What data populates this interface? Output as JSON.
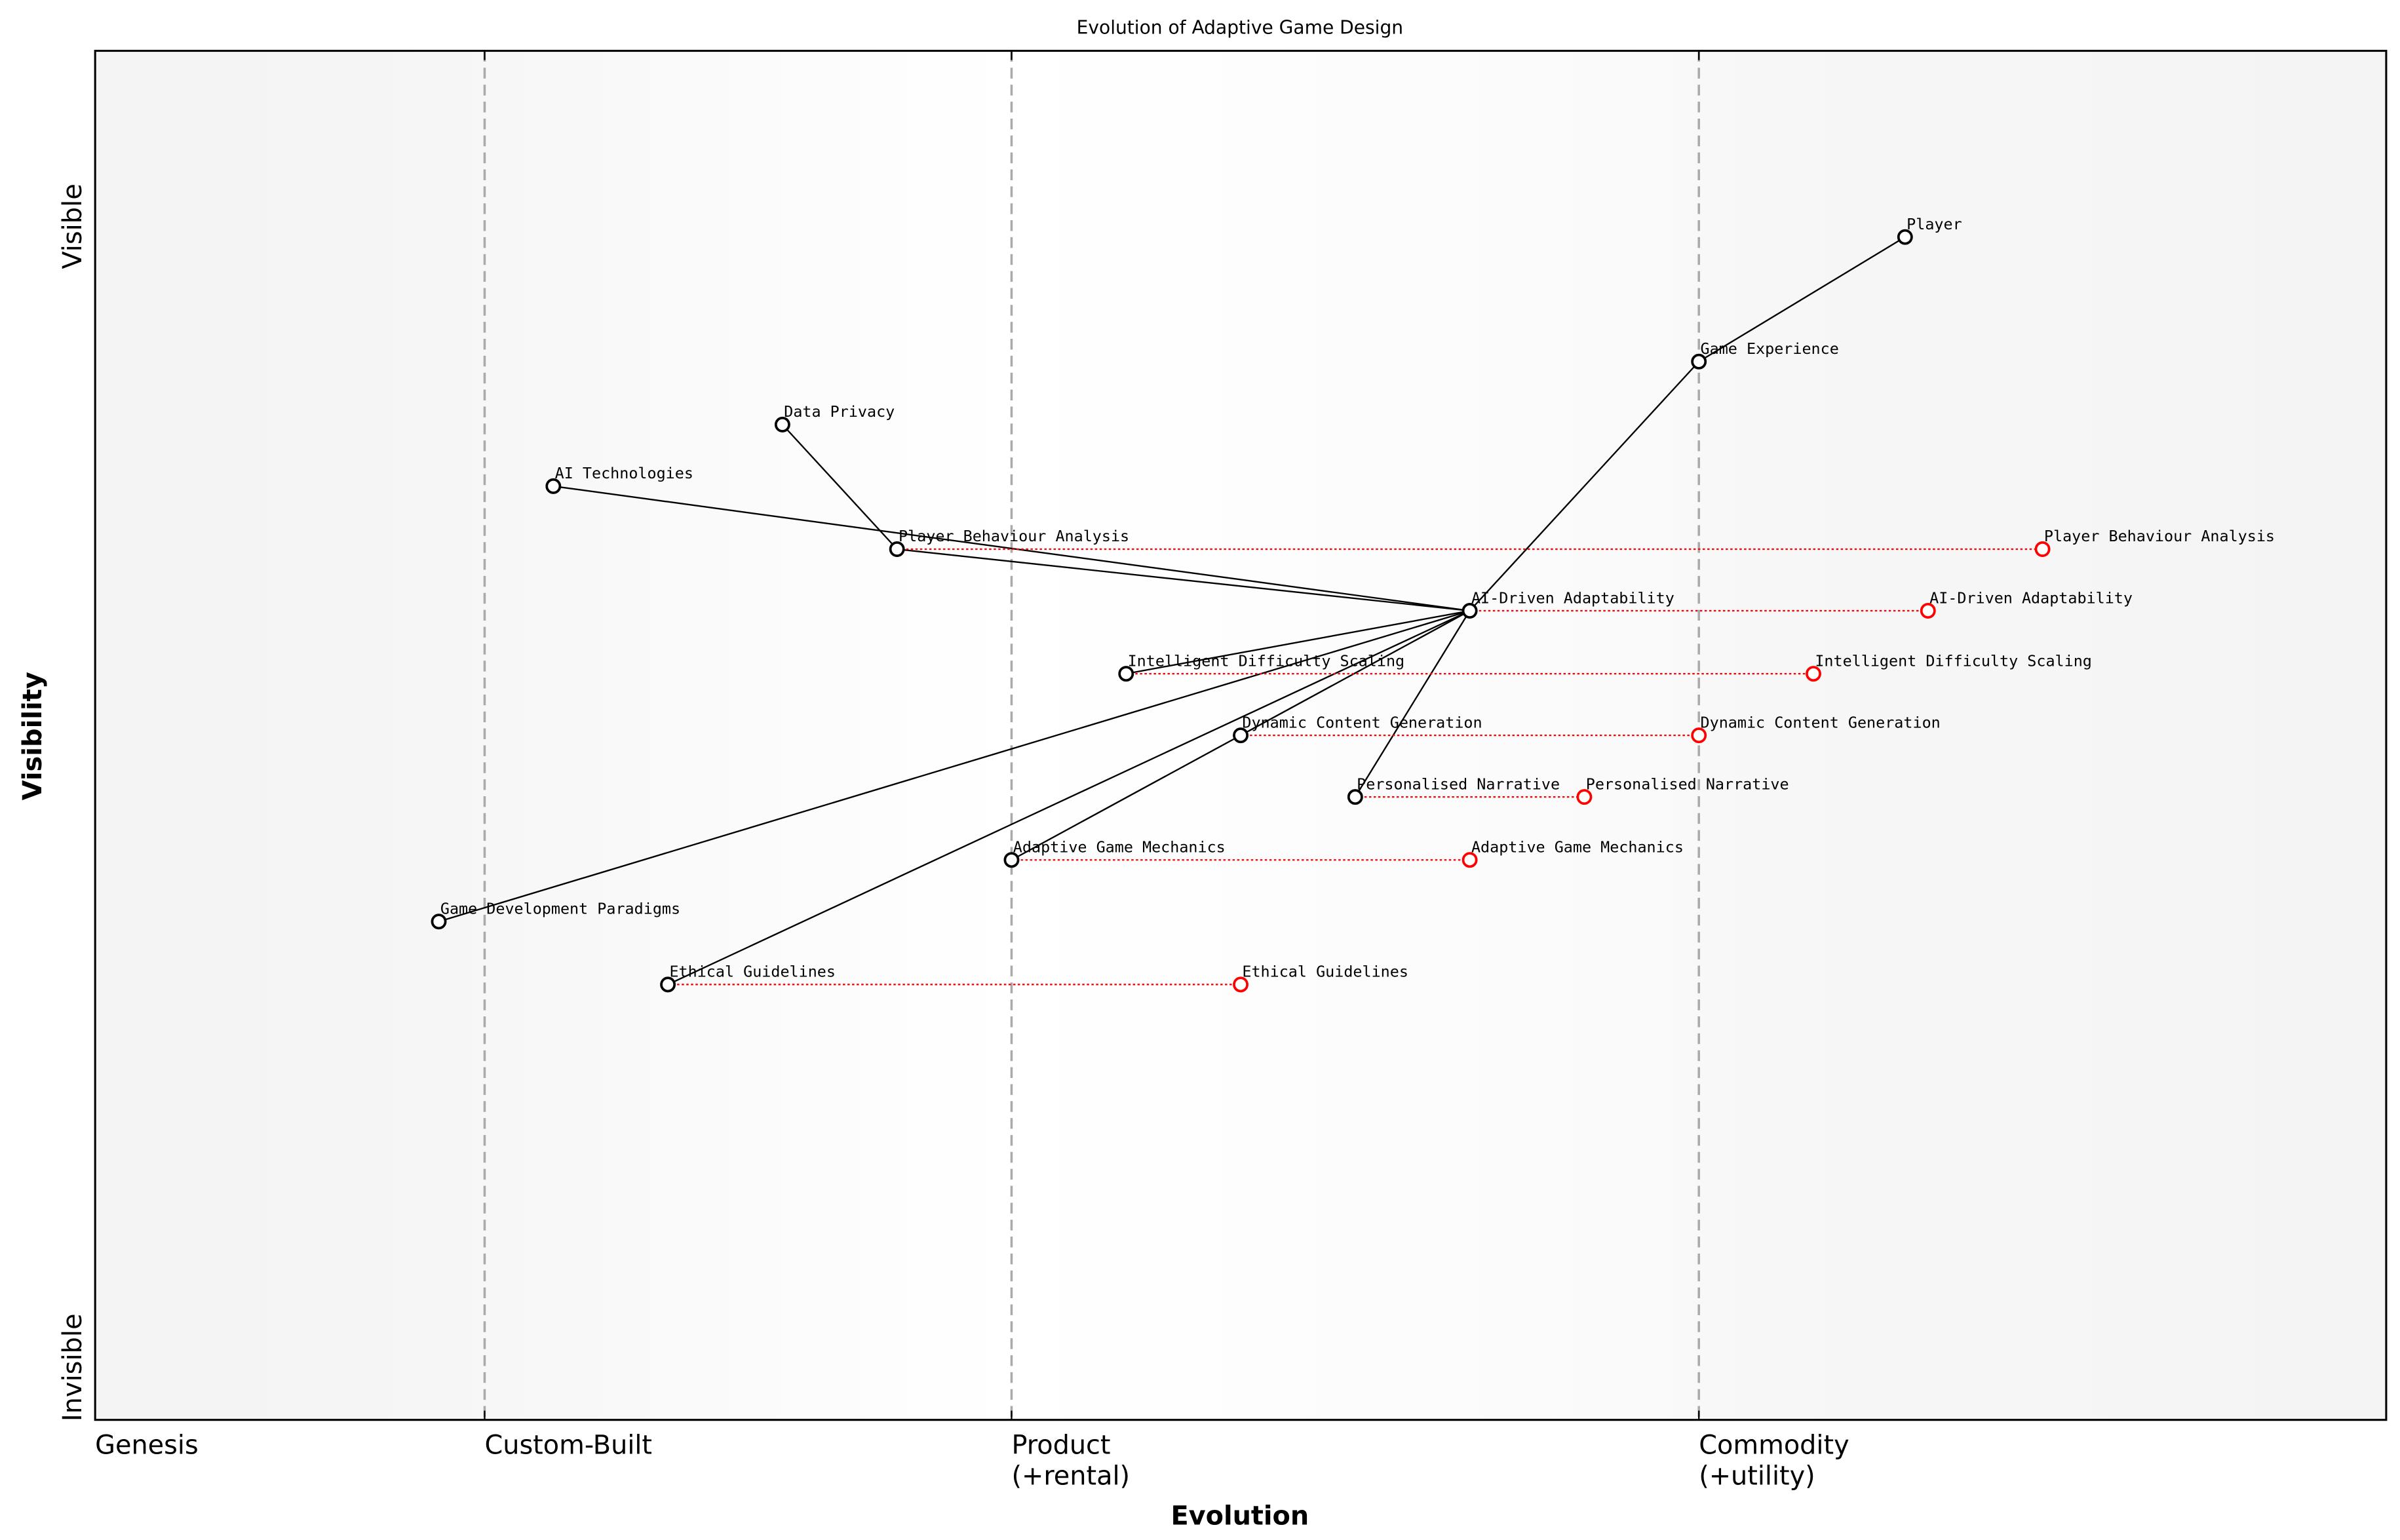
{
  "chart_data": {
    "type": "wardley-map",
    "title": "Evolution of Adaptive Game Design",
    "xlabel": "Evolution",
    "ylabel": "Visibility",
    "xlim": [
      0,
      1
    ],
    "ylim": [
      0,
      1
    ],
    "x_stages": [
      {
        "label": "Genesis",
        "at": 0.0
      },
      {
        "label": "Custom-Built",
        "at": 0.17
      },
      {
        "label": "Product\n(+rental)",
        "at": 0.4
      },
      {
        "label": "Commodity\n(+utility)",
        "at": 0.7
      }
    ],
    "y_labels": {
      "top": "Visible",
      "bottom": "Invisible"
    },
    "components": [
      {
        "name": "Player",
        "evolution": 0.79,
        "visibility": 0.864
      },
      {
        "name": "Game Experience",
        "evolution": 0.7,
        "visibility": 0.773
      },
      {
        "name": "Data Privacy",
        "evolution": 0.3,
        "visibility": 0.727
      },
      {
        "name": "AI Technologies",
        "evolution": 0.2,
        "visibility": 0.682
      },
      {
        "name": "Player Behaviour Analysis",
        "evolution": 0.35,
        "visibility": 0.636
      },
      {
        "name": "AI-Driven Adaptability",
        "evolution": 0.6,
        "visibility": 0.591
      },
      {
        "name": "Intelligent Difficulty Scaling",
        "evolution": 0.45,
        "visibility": 0.545
      },
      {
        "name": "Dynamic Content Generation",
        "evolution": 0.5,
        "visibility": 0.5
      },
      {
        "name": "Personalised Narrative",
        "evolution": 0.55,
        "visibility": 0.455
      },
      {
        "name": "Adaptive Game Mechanics",
        "evolution": 0.4,
        "visibility": 0.409
      },
      {
        "name": "Game Development Paradigms",
        "evolution": 0.15,
        "visibility": 0.364
      },
      {
        "name": "Ethical Guidelines",
        "evolution": 0.25,
        "visibility": 0.318
      }
    ],
    "evolved": [
      {
        "name": "Player Behaviour Analysis",
        "evolution": 0.85
      },
      {
        "name": "AI-Driven Adaptability",
        "evolution": 0.8
      },
      {
        "name": "Intelligent Difficulty Scaling",
        "evolution": 0.75
      },
      {
        "name": "Dynamic Content Generation",
        "evolution": 0.7
      },
      {
        "name": "Personalised Narrative",
        "evolution": 0.65
      },
      {
        "name": "Adaptive Game Mechanics",
        "evolution": 0.6
      },
      {
        "name": "Ethical Guidelines",
        "evolution": 0.5
      }
    ],
    "links": [
      [
        "Player",
        "Game Experience"
      ],
      [
        "Game Experience",
        "AI-Driven Adaptability"
      ],
      [
        "AI-Driven Adaptability",
        "AI Technologies"
      ],
      [
        "AI-Driven Adaptability",
        "Player Behaviour Analysis"
      ],
      [
        "Player Behaviour Analysis",
        "Data Privacy"
      ],
      [
        "AI-Driven Adaptability",
        "Intelligent Difficulty Scaling"
      ],
      [
        "AI-Driven Adaptability",
        "Dynamic Content Generation"
      ],
      [
        "Dynamic Content Generation",
        "Adaptive Game Mechanics"
      ],
      [
        "AI-Driven Adaptability",
        "Personalised Narrative"
      ],
      [
        "AI-Driven Adaptability",
        "Game Development Paradigms"
      ],
      [
        "AI-Driven Adaptability",
        "Ethical Guidelines"
      ]
    ],
    "colors": {
      "component": "#000000",
      "evolved": "#ff0000",
      "stage_line": "#aaaaaa"
    }
  }
}
